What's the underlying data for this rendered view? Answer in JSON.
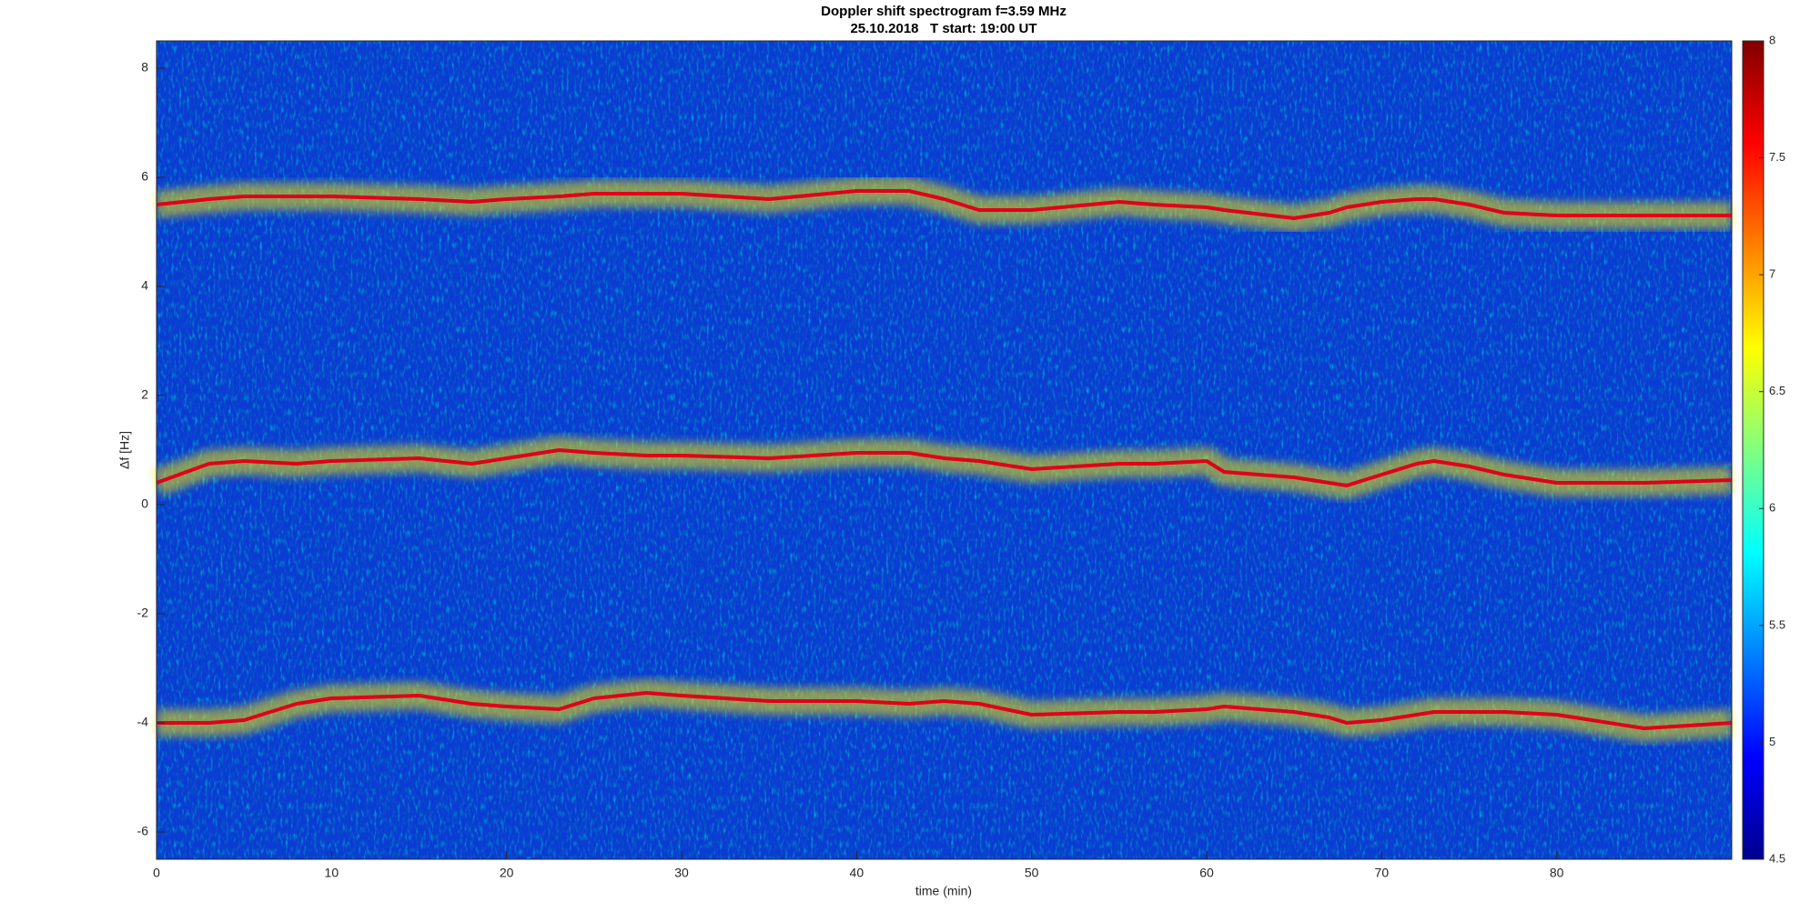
{
  "chart_data": {
    "type": "spectrogram",
    "title": "Doppler shift spectrogram f=3.59 MHz",
    "subtitle": "25.10.2018   T start: 19:00 UT",
    "xlabel": "time (min)",
    "ylabel": "Δf [Hz]",
    "xlim": [
      0,
      90
    ],
    "xticks": [
      0,
      10,
      20,
      30,
      40,
      50,
      60,
      70,
      80
    ],
    "ylim": [
      -6.5,
      8.5
    ],
    "yticks": [
      -6,
      -4,
      -2,
      0,
      2,
      4,
      6,
      8
    ],
    "background_color": "#0b3bd4",
    "glow_color": "#f5e400",
    "x": [
      0,
      3,
      5,
      8,
      10,
      15,
      18,
      20,
      23,
      25,
      28,
      30,
      35,
      40,
      43,
      45,
      47,
      50,
      55,
      57,
      60,
      61,
      65,
      67,
      68,
      70,
      72,
      73,
      75,
      77,
      80,
      85,
      90
    ],
    "series": [
      {
        "color": "#e0001a",
        "values": [
          5.5,
          5.6,
          5.65,
          5.65,
          5.65,
          5.6,
          5.55,
          5.6,
          5.65,
          5.7,
          5.7,
          5.7,
          5.6,
          5.75,
          5.75,
          5.6,
          5.4,
          5.4,
          5.55,
          5.5,
          5.45,
          5.4,
          5.25,
          5.35,
          5.45,
          5.55,
          5.6,
          5.6,
          5.5,
          5.35,
          5.3,
          5.3,
          5.3
        ]
      },
      {
        "color": "#e0001a",
        "values": [
          0.4,
          0.75,
          0.8,
          0.75,
          0.8,
          0.85,
          0.75,
          0.85,
          1.0,
          0.95,
          0.9,
          0.9,
          0.85,
          0.95,
          0.95,
          0.85,
          0.8,
          0.65,
          0.75,
          0.75,
          0.8,
          0.6,
          0.5,
          0.4,
          0.35,
          0.55,
          0.75,
          0.8,
          0.7,
          0.55,
          0.4,
          0.4,
          0.45
        ]
      },
      {
        "color": "#e0001a",
        "values": [
          -4.0,
          -4.0,
          -3.95,
          -3.65,
          -3.55,
          -3.5,
          -3.65,
          -3.7,
          -3.75,
          -3.55,
          -3.45,
          -3.5,
          -3.6,
          -3.6,
          -3.65,
          -3.6,
          -3.65,
          -3.85,
          -3.8,
          -3.8,
          -3.75,
          -3.7,
          -3.8,
          -3.9,
          -4.0,
          -3.95,
          -3.85,
          -3.8,
          -3.8,
          -3.8,
          -3.85,
          -4.1,
          -4.0
        ]
      }
    ],
    "clim": [
      4.5,
      8
    ],
    "cticks": [
      4.5,
      5,
      5.5,
      6,
      6.5,
      7,
      7.5,
      8
    ],
    "colormap": [
      "#00008f",
      "#0000ff",
      "#0080ff",
      "#00ffff",
      "#80ff80",
      "#ffff00",
      "#ff8000",
      "#ff0000",
      "#800000"
    ]
  }
}
